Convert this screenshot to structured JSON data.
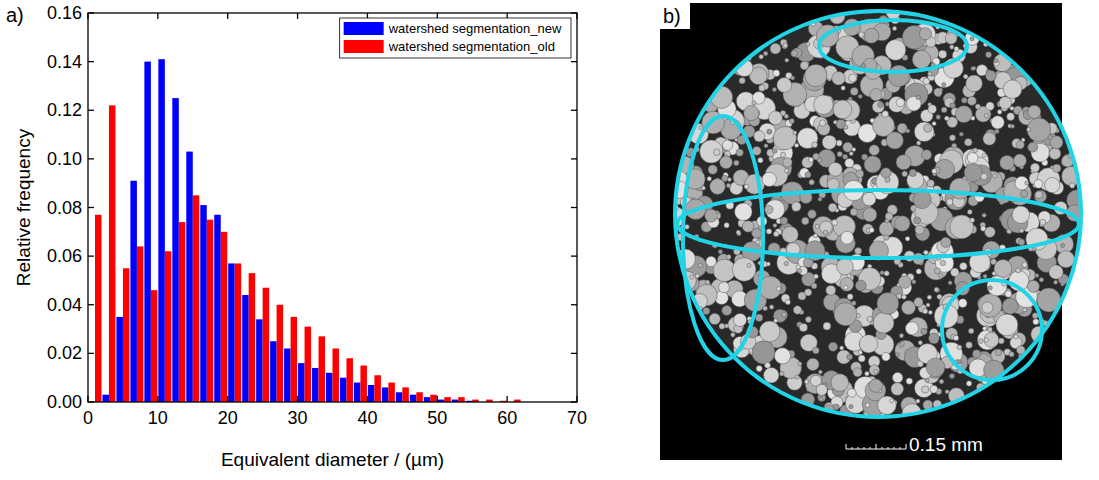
{
  "panels": [
    {
      "label": "a)"
    },
    {
      "label": "b)",
      "scale_bar_label": "0.15 mm"
    }
  ],
  "chart_data": {
    "type": "histogram",
    "x_label": "Equivalent diameter / (µm)",
    "y_label": "Relative frequency",
    "bins": [
      0,
      2,
      4,
      6,
      8,
      10,
      12,
      14,
      16,
      18,
      20,
      22,
      24,
      26,
      28,
      30,
      32,
      34,
      36,
      38,
      40,
      42,
      44,
      46,
      48,
      50,
      52,
      54,
      56,
      58,
      60,
      62
    ],
    "series": [
      {
        "name": "watershed segmentation_new",
        "color": "#0000ff",
        "values": [
          0,
          0.003,
          0.035,
          0.091,
          0.14,
          0.141,
          0.125,
          0.103,
          0.081,
          0.077,
          0.057,
          0.044,
          0.034,
          0.025,
          0.022,
          0.016,
          0.014,
          0.012,
          0.01,
          0.008,
          0.007,
          0.006,
          0.004,
          0.003,
          0.002,
          0.001,
          0.001,
          0.0005,
          0,
          0,
          0
        ]
      },
      {
        "name": "watershed segmentation_old",
        "color": "#ff0000",
        "values": [
          0.077,
          0.122,
          0.055,
          0.064,
          0.046,
          0.062,
          0.074,
          0.085,
          0.075,
          0.07,
          0.057,
          0.053,
          0.047,
          0.04,
          0.035,
          0.031,
          0.027,
          0.022,
          0.018,
          0.015,
          0.011,
          0.008,
          0.006,
          0.004,
          0.003,
          0.002,
          0.002,
          0.001,
          0.001,
          0.0005,
          0.001
        ]
      }
    ],
    "xlim": [
      0,
      70
    ],
    "xticks": [
      0,
      10,
      20,
      30,
      40,
      50,
      60,
      70
    ],
    "ylim": [
      0,
      0.16
    ],
    "yticks": [
      {
        "value": 0,
        "label": "0.00"
      },
      {
        "value": 0.02,
        "label": "0.02"
      },
      {
        "value": 0.04,
        "label": "0.04"
      },
      {
        "value": 0.06,
        "label": "0.06"
      },
      {
        "value": 0.08,
        "label": "0.08"
      },
      {
        "value": 0.1,
        "label": "0.10"
      },
      {
        "value": 0.12,
        "label": "0.12"
      },
      {
        "value": 0.14,
        "label": "0.14"
      },
      {
        "value": 0.16,
        "label": "0.16"
      }
    ],
    "legend": "upper right",
    "grid": false
  }
}
